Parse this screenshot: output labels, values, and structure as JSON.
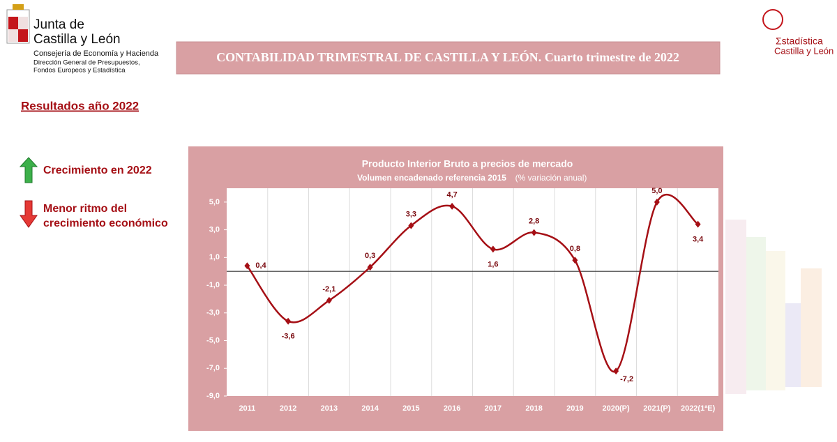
{
  "header": {
    "org_line1": "Junta de",
    "org_line2": "Castilla y León",
    "department": "Consejería de Economía y Hacienda",
    "directorate_line1": "Dirección General de Presupuestos,",
    "directorate_line2": "Fondos Europeos y Estadística",
    "banner": "CONTABILIDAD TRIMESTRAL DE CASTILLA Y LEÓN. Cuarto trimestre de 2022",
    "logo_line1": "Σstadística",
    "logo_line2": "Castilla y León"
  },
  "section_title": "Resultados año 2022",
  "notes": {
    "up": "Crecimiento en 2022",
    "down_line1": "Menor ritmo del",
    "down_line2": "crecimiento económico"
  },
  "chart_data": {
    "type": "line",
    "title": "Producto Interior Bruto a precios de mercado",
    "subtitle": "Volumen encadenado referencia 2015",
    "subtitle_note": "(% variación anual)",
    "categories": [
      "2011",
      "2012",
      "2013",
      "2014",
      "2015",
      "2016",
      "2017",
      "2018",
      "2019",
      "2020(P)",
      "2021(P)",
      "2022(1ªE)"
    ],
    "values": [
      0.4,
      -3.6,
      -2.1,
      0.3,
      3.3,
      4.7,
      1.6,
      2.8,
      0.8,
      -7.2,
      5.0,
      3.4
    ],
    "value_labels": [
      "0,4",
      "-3,6",
      "-2,1",
      "0,3",
      "3,3",
      "4,7",
      "1,6",
      "2,8",
      "0,8",
      "-7,2",
      "5,0",
      "3,4"
    ],
    "color": "#a50f15",
    "smooth": true,
    "ylim": [
      -9,
      6
    ],
    "yticks": [
      {
        "value": -9,
        "label": "-9,0"
      },
      {
        "value": -7,
        "label": "-7,0"
      },
      {
        "value": -5,
        "label": "-5,0"
      },
      {
        "value": -3,
        "label": "-3,0"
      },
      {
        "value": -1,
        "label": "-1,0"
      },
      {
        "value": 1,
        "label": "1,0"
      },
      {
        "value": 3,
        "label": "3,0"
      },
      {
        "value": 5,
        "label": "5,0"
      }
    ]
  }
}
